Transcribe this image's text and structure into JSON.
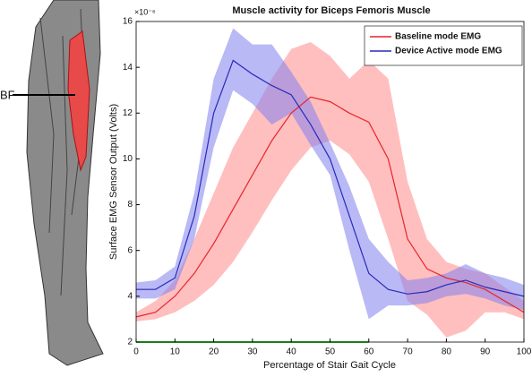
{
  "side_label": "BF",
  "chart_data": {
    "type": "line",
    "title": "Muscle activity for Biceps Femoris Muscle",
    "xlabel": "Percentage of Stair Gait Cycle",
    "ylabel": "Surface EMG Sensor Output (Volts)",
    "y_multiplier": "×10⁻⁶",
    "x": [
      0,
      5,
      10,
      15,
      20,
      25,
      30,
      35,
      40,
      45,
      50,
      55,
      60,
      65,
      70,
      75,
      80,
      85,
      90,
      95,
      100
    ],
    "series": [
      {
        "name": "Baseline mode EMG",
        "color": "#e8242a",
        "band_color": "#ff8a8a",
        "values": [
          3.1,
          3.3,
          4.0,
          5.0,
          6.3,
          7.8,
          9.3,
          10.8,
          12.0,
          12.7,
          12.5,
          12.0,
          11.6,
          10.0,
          6.5,
          5.2,
          4.8,
          4.6,
          4.3,
          3.8,
          3.3
        ],
        "upper": [
          3.3,
          3.8,
          4.7,
          6.5,
          8.5,
          10.5,
          12.0,
          13.5,
          14.8,
          15.1,
          14.5,
          13.5,
          14.3,
          13.5,
          9.0,
          6.5,
          5.5,
          5.2,
          5.0,
          4.4,
          3.8
        ],
        "lower": [
          2.9,
          3.0,
          3.3,
          3.8,
          4.5,
          5.5,
          6.8,
          8.2,
          9.5,
          10.5,
          10.8,
          10.2,
          9.0,
          6.5,
          3.8,
          3.2,
          2.2,
          2.5,
          3.3,
          3.3,
          3.0
        ]
      },
      {
        "name": "Device Active mode EMG",
        "color": "#2a2ab8",
        "band_color": "#7f7fee",
        "values": [
          4.3,
          4.3,
          4.8,
          7.5,
          12.0,
          14.3,
          13.7,
          13.2,
          12.8,
          11.5,
          10.0,
          7.5,
          5.0,
          4.3,
          4.1,
          4.2,
          4.5,
          4.7,
          4.4,
          4.2,
          4.0
        ],
        "upper": [
          4.6,
          4.7,
          5.3,
          8.5,
          13.5,
          15.7,
          15.0,
          15.0,
          13.8,
          12.5,
          10.7,
          8.8,
          6.5,
          5.5,
          4.7,
          4.8,
          5.0,
          5.4,
          5.0,
          4.8,
          4.5
        ],
        "lower": [
          3.9,
          3.9,
          4.3,
          6.5,
          10.5,
          13.0,
          12.4,
          11.5,
          12.0,
          10.6,
          9.3,
          6.0,
          3.0,
          3.6,
          3.6,
          3.7,
          4.0,
          4.1,
          3.9,
          3.6,
          3.4
        ]
      }
    ],
    "bottom_bar": {
      "x": [
        0,
        60
      ],
      "y": 2,
      "color": "#33cc33"
    },
    "xlim": [
      0,
      100
    ],
    "xticks": [
      0,
      10,
      20,
      30,
      40,
      50,
      60,
      70,
      80,
      90,
      100
    ],
    "ylim": [
      2,
      16
    ],
    "yticks": [
      2,
      4,
      6,
      8,
      10,
      12,
      14,
      16
    ],
    "legend": "upper right"
  }
}
